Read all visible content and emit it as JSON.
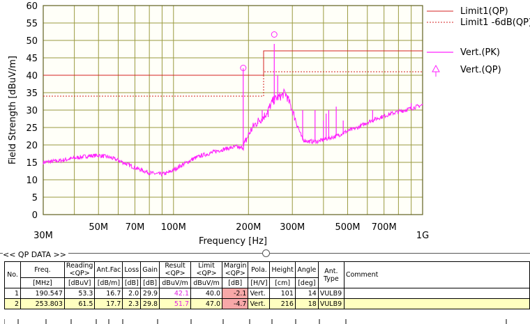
{
  "chart_data": {
    "type": "line",
    "title": "",
    "xlabel": "Frequency [Hz]",
    "ylabel": "Field Strength [dBuV/m]",
    "x_scale": "log",
    "xlim_mhz": [
      30,
      1000
    ],
    "ylim": [
      0,
      60
    ],
    "grid": true,
    "legend_position": "right",
    "y_ticks": [
      0,
      5,
      10,
      15,
      20,
      25,
      30,
      35,
      40,
      45,
      50,
      55,
      60
    ],
    "x_ticks": [
      {
        "mhz": 30,
        "label": "30M"
      },
      {
        "mhz": 50,
        "label": "50M"
      },
      {
        "mhz": 70,
        "label": "70M"
      },
      {
        "mhz": 100,
        "label": "100M"
      },
      {
        "mhz": 200,
        "label": "200M"
      },
      {
        "mhz": 300,
        "label": "300M"
      },
      {
        "mhz": 500,
        "label": "500M"
      },
      {
        "mhz": 700,
        "label": "700M"
      },
      {
        "mhz": 1000,
        "label": "1G"
      }
    ],
    "x_minor_grid_mhz": [
      40,
      60,
      80,
      90,
      400,
      600,
      800,
      900
    ],
    "series": [
      {
        "name": "Limit1(QP)",
        "style": "solid",
        "color": "#d42020",
        "points": [
          [
            30,
            40
          ],
          [
            230,
            40
          ],
          [
            230,
            47
          ],
          [
            1000,
            47
          ]
        ]
      },
      {
        "name": "Limit1 -6dB(QP)",
        "style": "dashed",
        "color": "#d42020",
        "points": [
          [
            30,
            34
          ],
          [
            230,
            34
          ],
          [
            230,
            41
          ],
          [
            1000,
            41
          ]
        ]
      },
      {
        "name": "Vert.(PK)",
        "style": "solid",
        "color": "#ff20ff",
        "points": [
          [
            30,
            15
          ],
          [
            35,
            15.5
          ],
          [
            40,
            16.2
          ],
          [
            45,
            16.8
          ],
          [
            50,
            17
          ],
          [
            55,
            16.5
          ],
          [
            60,
            15.6
          ],
          [
            65,
            14.5
          ],
          [
            70,
            13.5
          ],
          [
            75,
            12.7
          ],
          [
            80,
            12
          ],
          [
            85,
            11.7
          ],
          [
            90,
            11.6
          ],
          [
            95,
            12
          ],
          [
            100,
            12.8
          ],
          [
            110,
            14.5
          ],
          [
            120,
            16
          ],
          [
            130,
            17
          ],
          [
            140,
            17.6
          ],
          [
            150,
            18.3
          ],
          [
            160,
            18.8
          ],
          [
            170,
            19.2
          ],
          [
            180,
            19.5
          ],
          [
            185,
            19
          ],
          [
            190,
            19.5
          ],
          [
            195,
            21
          ],
          [
            200,
            23
          ],
          [
            210,
            25.5
          ],
          [
            220,
            27
          ],
          [
            230,
            28
          ],
          [
            240,
            30
          ],
          [
            250,
            32.5
          ],
          [
            260,
            33.5
          ],
          [
            270,
            34
          ],
          [
            280,
            35
          ],
          [
            285,
            34
          ],
          [
            300,
            30
          ],
          [
            310,
            27
          ],
          [
            320,
            24
          ],
          [
            330,
            21.5
          ],
          [
            350,
            21
          ],
          [
            380,
            21
          ],
          [
            400,
            21.5
          ],
          [
            450,
            22.5
          ],
          [
            500,
            24
          ],
          [
            550,
            25
          ],
          [
            600,
            26.5
          ],
          [
            650,
            27.5
          ],
          [
            700,
            28.3
          ],
          [
            750,
            29
          ],
          [
            800,
            29.5
          ],
          [
            850,
            30
          ],
          [
            900,
            30.5
          ],
          [
            950,
            31
          ],
          [
            1000,
            31.5
          ]
        ]
      },
      {
        "name": "Vert.(QP)",
        "style": "marker",
        "color": "#ff20ff",
        "points": [
          [
            190.547,
            42.1
          ],
          [
            253.803,
            51.7
          ]
        ]
      }
    ],
    "pk_spikes": [
      [
        190.5,
        42
      ],
      [
        195,
        22
      ],
      [
        218,
        26
      ],
      [
        227,
        30
      ],
      [
        240,
        28
      ],
      [
        253.8,
        49
      ],
      [
        262,
        40
      ],
      [
        330,
        30
      ],
      [
        370,
        30
      ],
      [
        400,
        27
      ],
      [
        410,
        29
      ],
      [
        420,
        30
      ],
      [
        450,
        31
      ],
      [
        480,
        27
      ],
      [
        630,
        30
      ],
      [
        900,
        32
      ]
    ]
  },
  "qp_data": {
    "section_title": "<< QP DATA >>",
    "headers": [
      {
        "top": "No.",
        "sub": ""
      },
      {
        "top": "Freq.",
        "sub": "[MHz]"
      },
      {
        "top": "Reading",
        "sub": "<QP>",
        "sub2": "[dBuV]"
      },
      {
        "top": "Ant.Fac",
        "sub": "[dB/m]"
      },
      {
        "top": "Loss",
        "sub": "[dB]"
      },
      {
        "top": "Gain",
        "sub": "[dB]"
      },
      {
        "top": "Result",
        "sub": "<QP>",
        "sub2": "dBuV/m"
      },
      {
        "top": "Limit",
        "sub": "<QP>",
        "sub2": "dBuV/m"
      },
      {
        "top": "Margin",
        "sub": "<QP>",
        "sub2": "[dB]"
      },
      {
        "top": "Pola.",
        "sub": "[H/V]"
      },
      {
        "top": "Height",
        "sub": "[cm]"
      },
      {
        "top": "Angle",
        "sub": "[deg]"
      },
      {
        "top": "Ant.",
        "sub": "Type"
      },
      {
        "top": "Comment",
        "sub": ""
      }
    ],
    "rows": [
      {
        "no": "1",
        "freq": "190.547",
        "reading": "53.3",
        "antfac": "16.7",
        "loss": "2.0",
        "gain": "29.9",
        "result": "42.1",
        "limit": "40.0",
        "margin": "-2.1",
        "pola": "Vert.",
        "height": "101",
        "angle": "14",
        "anttype": "VULB9",
        "comment": ""
      },
      {
        "no": "2",
        "freq": "253.803",
        "reading": "61.5",
        "antfac": "17.7",
        "loss": "2.3",
        "gain": "29.8",
        "result": "51.7",
        "limit": "47.0",
        "margin": "-4.7",
        "pola": "Vert.",
        "height": "216",
        "angle": "18",
        "anttype": "VULB9",
        "comment": ""
      }
    ]
  }
}
